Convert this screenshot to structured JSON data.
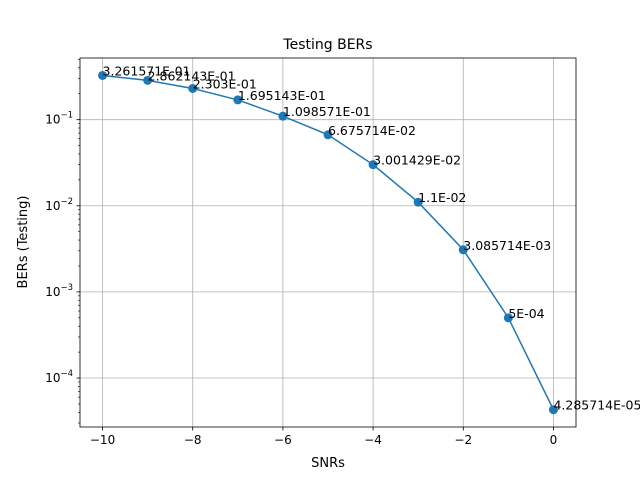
{
  "chart_data": {
    "type": "line",
    "title": "Testing BERs",
    "xlabel": "SNRs",
    "ylabel": "BERs (Testing)",
    "yscale": "log",
    "grid": true,
    "xlim": [
      -10.5,
      0.5
    ],
    "ylim": [
      2.7e-05,
      0.52
    ],
    "x_ticks": [
      -10,
      -8,
      -6,
      -4,
      -2,
      0
    ],
    "x_tick_labels": [
      "−10",
      "−8",
      "−6",
      "−4",
      "−2",
      "0"
    ],
    "y_ticks": [
      0.0001,
      0.001,
      0.01,
      0.1
    ],
    "y_tick_labels": [
      {
        "base": "10",
        "exp": "−4"
      },
      {
        "base": "10",
        "exp": "−3"
      },
      {
        "base": "10",
        "exp": "−2"
      },
      {
        "base": "10",
        "exp": "−1"
      }
    ],
    "series": [
      {
        "color": "#1f77b4",
        "marker": "circle",
        "x": [
          -10,
          -9,
          -8,
          -7,
          -6,
          -5,
          -4,
          -3,
          -2,
          -1,
          0
        ],
        "y": [
          0.3261571,
          0.2862143,
          0.2303,
          0.1695143,
          0.1098571,
          0.06675714,
          0.03001429,
          0.011,
          0.003085714,
          0.0005,
          4.285714e-05
        ],
        "labels": [
          "3.261571E-01",
          "2.862143E-01",
          "2.303E-01",
          "1.695143E-01",
          "1.098571E-01",
          "6.675714E-02",
          "3.001429E-02",
          "1.1E-02",
          "3.085714E-03",
          "5E-04",
          "4.285714E-05"
        ]
      }
    ]
  }
}
